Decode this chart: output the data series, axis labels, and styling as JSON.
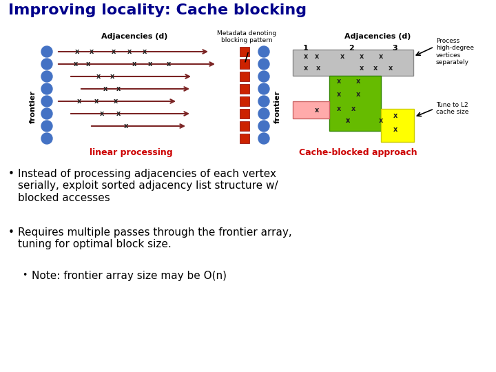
{
  "title": "Improving locality: Cache blocking",
  "title_color": "#00008B",
  "title_fontsize": 16,
  "bg_color": "#FFFFFF",
  "bullet1": "Instead of processing adjacencies of each vertex\nserially, exploit sorted adjacency list structure w/\nblocked accesses",
  "bullet2": "Requires multiple passes through the frontier array,\ntuning for optimal block size.",
  "bullet3": "Note: frontier array size may be O(n)",
  "text_color": "#000000",
  "red_color": "#CC0000",
  "arrow_color": "#7B2424",
  "dot_color": "#4472C4",
  "frontier_label": "frontier",
  "adj_label_left": "Adjacencies (d)",
  "adj_label_right": "Adjacencies (d)",
  "linear_label": "linear processing",
  "cache_label": "Cache-blocked approach",
  "metadata_label": "Metadata denoting\nblocking pattern",
  "slash_label": "/",
  "process_label": "Process\nhigh-degree\nvertices\nseparately",
  "tune_label": "Tune to L2\ncache size"
}
